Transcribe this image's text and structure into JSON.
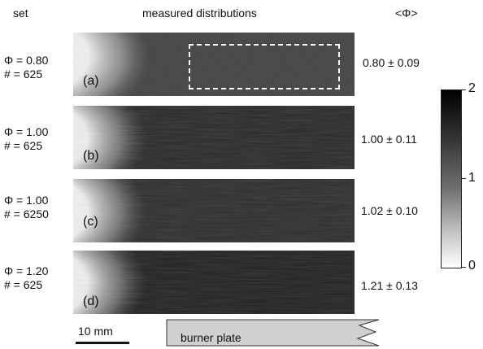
{
  "headers": {
    "set": "set",
    "measured": "measured distributions",
    "mean": "<Φ>"
  },
  "panels": [
    {
      "phi_label": "Φ = 0.80",
      "count_label": "# = 625",
      "letter": "(a)",
      "mean": "0.80 ± 0.09",
      "phi": 0.8
    },
    {
      "phi_label": "Φ = 1.00",
      "count_label": "# = 625",
      "letter": "(b)",
      "mean": "1.00  ± 0.11",
      "phi": 1.0
    },
    {
      "phi_label": "Φ = 1.00",
      "count_label": "# = 6250",
      "letter": "(c)",
      "mean": "1.02  ± 0.10",
      "phi": 1.02
    },
    {
      "phi_label": "Φ = 1.20",
      "count_label": "# = 625",
      "letter": "(d)",
      "mean": "1.21  ± 0.13",
      "phi": 1.21
    }
  ],
  "colorbar": {
    "ticks": [
      "2",
      "1",
      "0"
    ],
    "min": 0,
    "max": 2,
    "colormap": "grayscale, white at 0 to black at 2"
  },
  "scale_bar": {
    "label": "10 mm"
  },
  "burner_plate": {
    "label": "burner plate",
    "fill": "#d0d0d0"
  }
}
